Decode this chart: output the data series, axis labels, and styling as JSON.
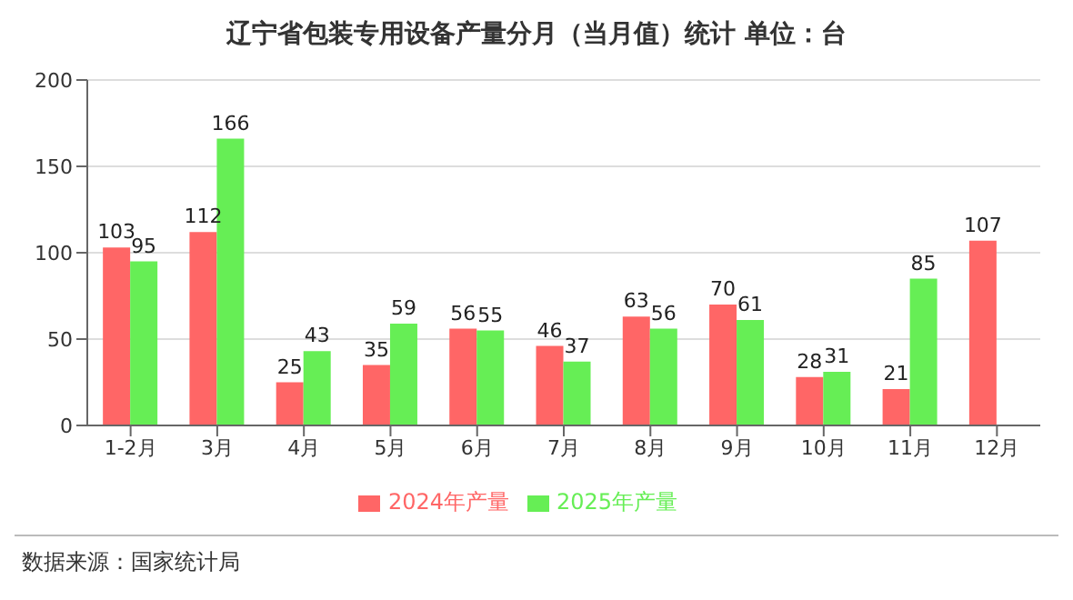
{
  "chart_data": {
    "type": "bar",
    "title": "辽宁省包装专用设备产量分月（当月值）统计  单位：台",
    "categories": [
      "1-2月",
      "3月",
      "4月",
      "5月",
      "6月",
      "7月",
      "8月",
      "9月",
      "10月",
      "11月",
      "12月"
    ],
    "series": [
      {
        "name": "2024年产量",
        "color": "#ff6666",
        "values": [
          103,
          112,
          25,
          35,
          56,
          46,
          63,
          70,
          28,
          21,
          107
        ]
      },
      {
        "name": "2025年产量",
        "color": "#66ee55",
        "values": [
          95,
          166,
          43,
          59,
          55,
          37,
          56,
          61,
          31,
          85,
          null
        ]
      }
    ],
    "ylim": [
      0,
      200
    ],
    "yticks": [
      0,
      50,
      100,
      150,
      200
    ],
    "grid": "y",
    "legend": "bottom",
    "data_labels": true,
    "annotations": [
      "数据来源：国家统计局"
    ]
  }
}
